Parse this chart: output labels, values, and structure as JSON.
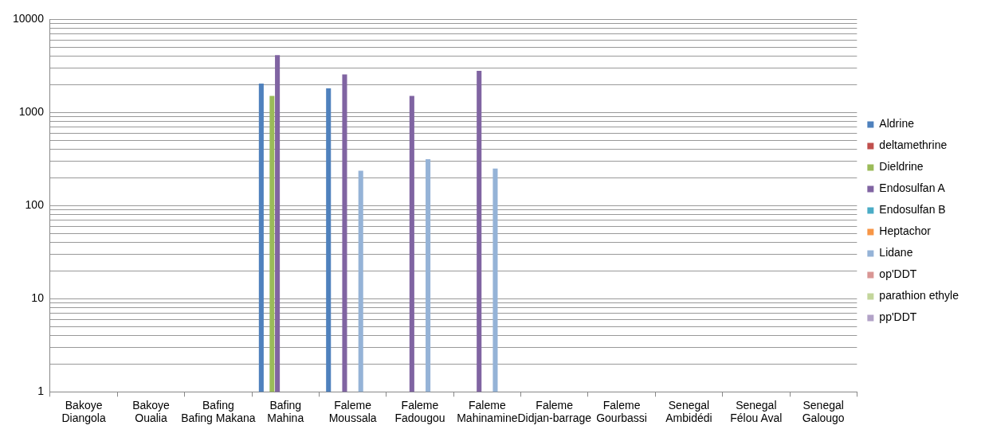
{
  "chart_data": {
    "type": "bar",
    "categories": [
      "Bakoye\nDiangola",
      "Bakoye\nOualia",
      "Bafing\nBafing Makana",
      "Bafing\nMahina",
      "Faleme\nMoussala",
      "Faleme\nFadougou",
      "Faleme\nMahinamine",
      "Faleme\nDidjan-barrage",
      "Faleme\nGourbassi",
      "Senegal\nAmbidédi",
      "Senegal\nFélou Aval",
      "Senegal\nGalougo"
    ],
    "series": [
      {
        "name": "Aldrine",
        "color": "#4f81bd",
        "values": [
          null,
          null,
          null,
          2050,
          1815,
          null,
          null,
          null,
          null,
          null,
          null,
          null
        ]
      },
      {
        "name": "deltamethrine",
        "color": "#c0504d",
        "values": [
          null,
          null,
          null,
          null,
          null,
          null,
          null,
          null,
          null,
          null,
          null,
          null
        ]
      },
      {
        "name": "Dieldrine",
        "color": "#9bbb59",
        "values": [
          null,
          null,
          null,
          1510,
          null,
          null,
          null,
          null,
          null,
          null,
          null,
          null
        ]
      },
      {
        "name": "Endosulfan A",
        "color": "#8064a2",
        "values": [
          null,
          null,
          null,
          4130,
          2570,
          1510,
          2800,
          null,
          null,
          null,
          null,
          null
        ]
      },
      {
        "name": "Endosulfan B",
        "color": "#4bacc6",
        "values": [
          null,
          null,
          null,
          null,
          null,
          null,
          null,
          null,
          null,
          null,
          null,
          null
        ]
      },
      {
        "name": "Heptachor",
        "color": "#f79646",
        "values": [
          null,
          null,
          null,
          null,
          null,
          null,
          null,
          null,
          null,
          null,
          null,
          null
        ]
      },
      {
        "name": "Lidane",
        "color": "#95b3d7",
        "values": [
          null,
          null,
          null,
          null,
          237,
          316,
          250,
          null,
          null,
          null,
          null,
          null
        ]
      },
      {
        "name": "op'DDT",
        "color": "#d99694",
        "values": [
          null,
          null,
          null,
          null,
          null,
          null,
          null,
          null,
          null,
          null,
          null,
          null
        ]
      },
      {
        "name": "parathion ethyle",
        "color": "#c3d69b",
        "values": [
          null,
          null,
          null,
          null,
          null,
          null,
          null,
          null,
          null,
          null,
          null,
          null
        ]
      },
      {
        "name": "pp'DDT",
        "color": "#b2a2c7",
        "values": [
          null,
          null,
          null,
          null,
          null,
          null,
          null,
          null,
          null,
          null,
          null,
          null
        ]
      }
    ],
    "log": "y",
    "ylim": [
      1,
      10000
    ],
    "yticks": [
      1,
      {
        "value": 2,
        "label": null
      },
      {
        "value": 3,
        "label": null
      },
      {
        "value": 4,
        "label": null
      },
      {
        "value": 5,
        "label": null
      },
      {
        "value": 6,
        "label": null
      },
      {
        "value": 7,
        "label": null
      },
      {
        "value": 8,
        "label": null
      },
      {
        "value": 9,
        "label": null
      },
      10,
      {
        "value": 20,
        "label": null
      },
      {
        "value": 30,
        "label": null
      },
      {
        "value": 40,
        "label": null
      },
      {
        "value": 50,
        "label": null
      },
      {
        "value": 60,
        "label": null
      },
      {
        "value": 70,
        "label": null
      },
      {
        "value": 80,
        "label": null
      },
      {
        "value": 90,
        "label": null
      },
      100,
      {
        "value": 200,
        "label": null
      },
      {
        "value": 300,
        "label": null
      },
      {
        "value": 400,
        "label": null
      },
      {
        "value": 500,
        "label": null
      },
      {
        "value": 600,
        "label": null
      },
      {
        "value": 700,
        "label": null
      },
      {
        "value": 800,
        "label": null
      },
      {
        "value": 900,
        "label": null
      },
      1000,
      {
        "value": 2000,
        "label": null
      },
      {
        "value": 3000,
        "label": null
      },
      {
        "value": 4000,
        "label": null
      },
      {
        "value": 5000,
        "label": null
      },
      {
        "value": 6000,
        "label": null
      },
      {
        "value": 7000,
        "label": null
      },
      {
        "value": 8000,
        "label": null
      },
      {
        "value": 9000,
        "label": null
      },
      10000
    ],
    "grid": "y",
    "legend": "right"
  }
}
